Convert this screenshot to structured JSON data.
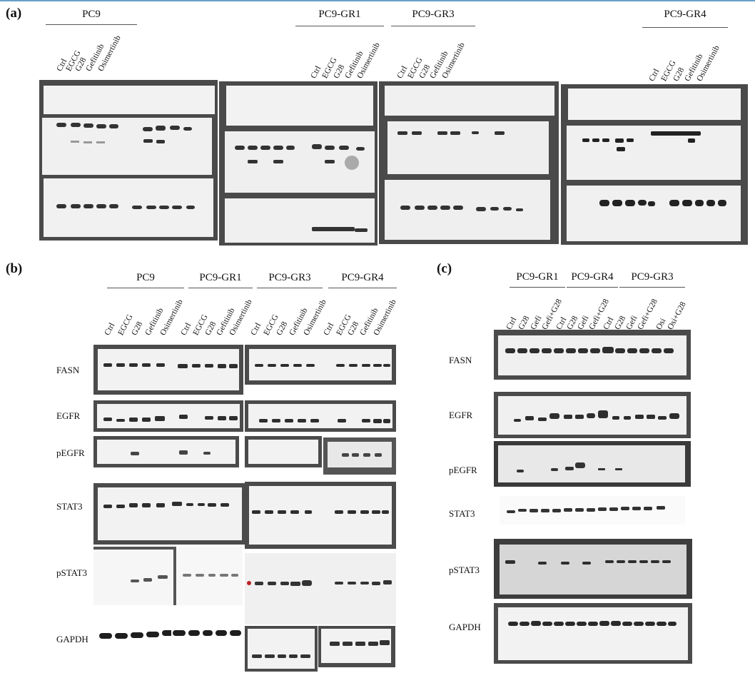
{
  "panels": {
    "a": {
      "letter": "(a)",
      "groups": [
        "PC9",
        "PC9-GR1",
        "PC9-GR3",
        "PC9-GR4"
      ],
      "lanes": [
        "Ctrl",
        "EGCG",
        "G28",
        "Gefitinib",
        "Osimertinib"
      ]
    },
    "b": {
      "letter": "(b)",
      "groups": [
        "PC9",
        "PC9-GR1",
        "PC9-GR3",
        "PC9-GR4"
      ],
      "lanes": [
        "Ctrl",
        "EGCG",
        "G28",
        "Gefitinib",
        "Osimertinib"
      ],
      "rows": [
        "FASN",
        "EGFR",
        "pEGFR",
        "STAT3",
        "pSTAT3",
        "GAPDH"
      ]
    },
    "c": {
      "letter": "(c)",
      "groups": [
        "PC9-GR1",
        "PC9-GR4",
        "PC9-GR3"
      ],
      "lanes": [
        "Ctrl",
        "G28",
        "Gefi",
        "Gefi+G28",
        "Ctrl",
        "G28",
        "Gefi",
        "Gefi+G28",
        "Ctrl",
        "G28",
        "Gefi",
        "Gefi+G28",
        "Osi",
        "Osi+G28"
      ],
      "rows": [
        "FASN",
        "EGFR",
        "pEGFR",
        "STAT3",
        "pSTAT3",
        "GAPDH"
      ]
    }
  }
}
